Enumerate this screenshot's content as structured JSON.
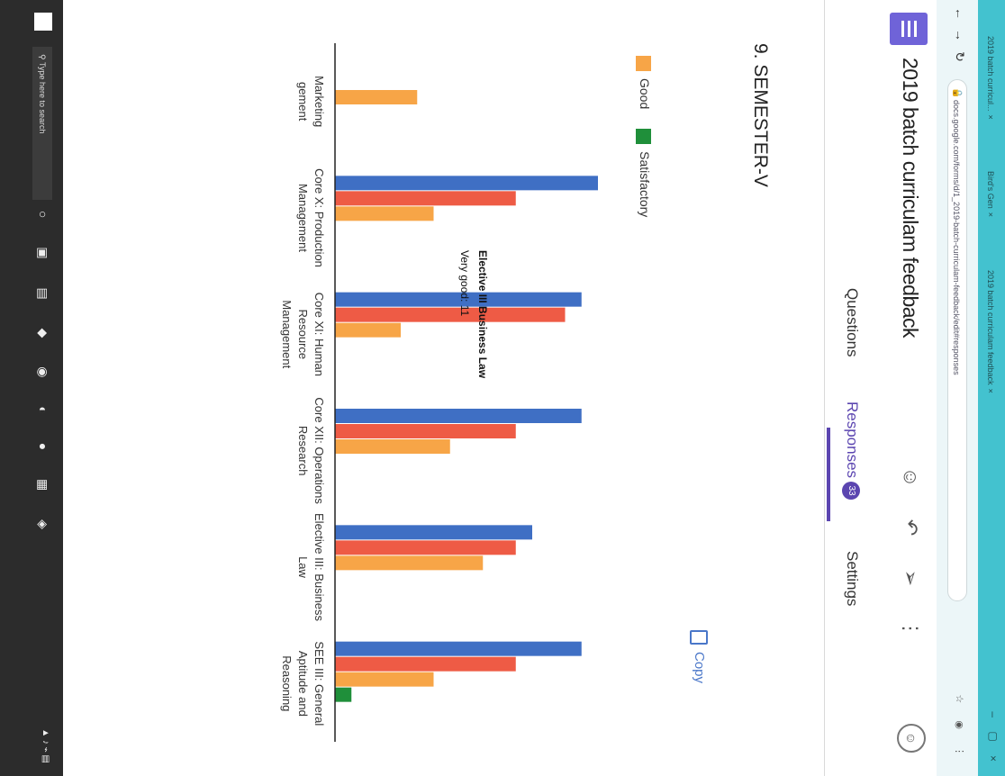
{
  "browser": {
    "tabs": [
      "2019 batch curricul...",
      "Bird's Gen",
      "2019 batch curriculam feedback"
    ],
    "url": "docs.google.com/forms/d/1_2019-batch-curriculam-feedback/edit#responses"
  },
  "form": {
    "title": "2019 batch curriculam feedback",
    "tabs": {
      "questions": "Questions",
      "responses": "Responses",
      "responses_count": "33",
      "settings": "Settings"
    }
  },
  "section": {
    "title": "9. SEMESTER-V",
    "copy_label": "Copy"
  },
  "taskbar": {
    "search_placeholder": "Type here to search"
  },
  "tooltip": {
    "category": "Elective III Business Law",
    "line": "Very good: 11"
  },
  "colors": {
    "very_good": "#3f6fc4",
    "good": "#ee5b45",
    "average": "#f7a547",
    "satisfactory": "#1f8f3a",
    "accent": "#5b45b0",
    "tabstrip": "#43c2cf"
  },
  "chart_data": {
    "type": "bar",
    "categories": [
      [
        "Marketing",
        "gement"
      ],
      [
        "Core X: Production",
        "Management"
      ],
      [
        "Core XI: Human",
        "Resource",
        "Management"
      ],
      [
        "Core XII: Operations",
        "Research"
      ],
      [
        "Elective III: Business",
        "Law"
      ],
      [
        "SEE III: General",
        "Aptitude and",
        "Reasoning"
      ]
    ],
    "legend": [
      "Good",
      "Satisfactory"
    ],
    "series": [
      {
        "values": [
          0,
          16,
          15,
          15,
          12,
          15
        ]
      },
      {
        "values": [
          0,
          11,
          14,
          11,
          11,
          11
        ]
      },
      {
        "name": "Good",
        "values": [
          5,
          6,
          4,
          7,
          9,
          6
        ]
      },
      {
        "name": "Satisfactory",
        "values": [
          0,
          0,
          0,
          0,
          0,
          1
        ]
      }
    ],
    "ylim": [
      0,
      16
    ],
    "grid": false
  }
}
